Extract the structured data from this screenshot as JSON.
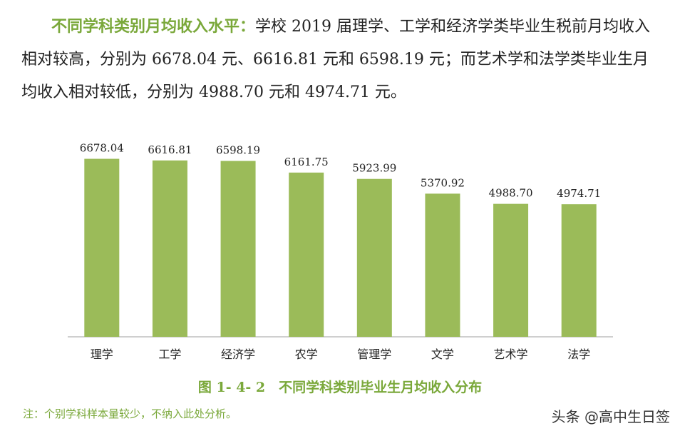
{
  "paragraph": {
    "lead": "不同学科类别月均收入水平：",
    "body": "学校 2019 届理学、工学和经济学类毕业生税前月均收入相对较高，分别为 6678.04 元、6616.81 元和 6598.19 元；而艺术学和法学类毕业生月均收入相对较低，分别为 4988.70 元和 4974.71 元。"
  },
  "chart_data": {
    "type": "bar",
    "categories": [
      "理学",
      "工学",
      "经济学",
      "农学",
      "管理学",
      "文学",
      "艺术学",
      "法学"
    ],
    "values": [
      6678.04,
      6616.81,
      6598.19,
      6161.75,
      5923.99,
      5370.92,
      4988.7,
      4974.71
    ],
    "value_labels": [
      "6678.04",
      "6616.81",
      "6598.19",
      "6161.75",
      "5923.99",
      "5370.92",
      "4988.70",
      "4974.71"
    ],
    "ylim": [
      0,
      6800
    ],
    "bar_color": "#9bbb59",
    "axis_color": "#bfbfbf",
    "grid": false,
    "title": "",
    "xlabel": "",
    "ylabel": ""
  },
  "caption": "图 1- 4- 2　不同学科类别毕业生月均收入分布",
  "note": "注：个别学科样本量较少，不纳入此处分析。",
  "watermark": "头条 @高中生日签"
}
